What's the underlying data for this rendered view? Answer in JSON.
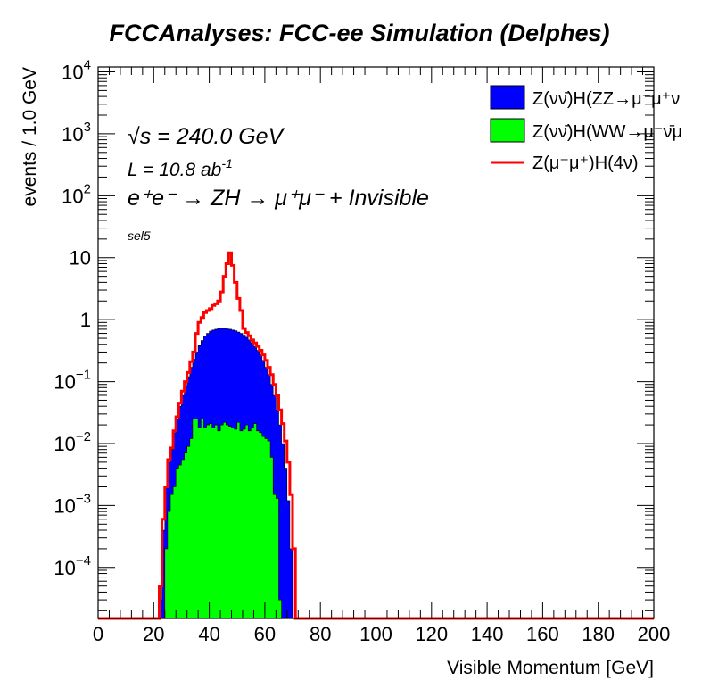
{
  "chart_data": {
    "type": "histogram",
    "title": "FCCAnalyses: FCC-ee Simulation (Delphes)",
    "xlabel": "Visible Momentum [GeV]",
    "ylabel": "events / 1.0 GeV",
    "xlim": [
      0,
      200
    ],
    "ylim": [
      1.5e-05,
      12000
    ],
    "yscale": "log",
    "x_ticks": [
      "0",
      "20",
      "40",
      "60",
      "80",
      "100",
      "120",
      "140",
      "160",
      "180",
      "200"
    ],
    "y_ticks": [
      {
        "base": "10",
        "exp": "4",
        "v": 10000
      },
      {
        "base": "10",
        "exp": "3",
        "v": 1000
      },
      {
        "base": "10",
        "exp": "2",
        "v": 100
      },
      {
        "base": "10",
        "exp": "",
        "v": 10
      },
      {
        "base": "1",
        "exp": "",
        "v": 1
      },
      {
        "base": "10",
        "exp": "−1",
        "v": 0.1
      },
      {
        "base": "10",
        "exp": "−2",
        "v": 0.01
      },
      {
        "base": "10",
        "exp": "−3",
        "v": 0.001
      },
      {
        "base": "10",
        "exp": "−4",
        "v": 0.0001
      }
    ],
    "annotations": {
      "sqrt_s_symbol": "√s",
      "sqrt_s_value": " = 240.0 GeV",
      "lumi_prefix": "L = 10.8 ab",
      "lumi_exp": "-1",
      "process": "e⁺e⁻ → ZH → μ⁺μ⁻ + Invisible",
      "selection": "sel5"
    },
    "legend_position": "top-right",
    "series": [
      {
        "name": "Z(νν̄)H(ZZ→μ⁻μ⁺ν",
        "color": "#0000ff",
        "style": "filled",
        "x_start": 20,
        "bin_width": 1,
        "values": [
          0,
          0,
          3e-05,
          0.0004,
          0.002,
          0.005,
          0.008,
          0.015,
          0.025,
          0.04,
          0.06,
          0.085,
          0.12,
          0.17,
          0.23,
          0.3,
          0.38,
          0.46,
          0.54,
          0.6,
          0.65,
          0.68,
          0.7,
          0.72,
          0.72,
          0.72,
          0.71,
          0.7,
          0.68,
          0.66,
          0.63,
          0.6,
          0.56,
          0.52,
          0.47,
          0.42,
          0.37,
          0.32,
          0.27,
          0.22,
          0.17,
          0.13,
          0.09,
          0.06,
          0.035,
          0.02,
          0.01,
          0.004,
          0.0012,
          0.0002,
          0,
          0,
          0,
          0,
          0,
          0
        ]
      },
      {
        "name": "Z(νν̄)H(WW→μ⁻ν̄μ",
        "color": "#00ff00",
        "style": "filled",
        "x_start": 20,
        "bin_width": 1,
        "values": [
          0,
          0,
          0,
          0,
          0.0002,
          0.0008,
          0.0015,
          0.002,
          0.004,
          0.0045,
          0.0055,
          0.007,
          0.009,
          0.012,
          0.025,
          0.025,
          0.018,
          0.025,
          0.018,
          0.02,
          0.021,
          0.018,
          0.02,
          0.016,
          0.02,
          0.022,
          0.02,
          0.019,
          0.018,
          0.017,
          0.022,
          0.016,
          0.017,
          0.02,
          0.016,
          0.018,
          0.021,
          0.016,
          0.015,
          0.013,
          0.012,
          0.011,
          0.006,
          0.0015,
          0.0013,
          3e-05,
          0,
          0,
          0,
          0,
          0,
          0,
          0,
          0,
          0,
          0
        ]
      },
      {
        "name": "Z(μ⁻μ⁺)H(4ν)",
        "color": "#ff0000",
        "style": "line",
        "x_start": 20,
        "bin_width": 1,
        "values": [
          0,
          0,
          5e-05,
          0.0006,
          0.002,
          0.0055,
          0.0085,
          0.016,
          0.027,
          0.045,
          0.07,
          0.1,
          0.14,
          0.21,
          0.3,
          0.6,
          0.9,
          1.08,
          1.3,
          1.4,
          1.5,
          1.7,
          1.8,
          2.0,
          2.8,
          5.0,
          8.0,
          12.0,
          7.5,
          4.0,
          2.2,
          1.4,
          0.72,
          0.62,
          0.55,
          0.47,
          0.42,
          0.37,
          0.32,
          0.27,
          0.22,
          0.17,
          0.13,
          0.09,
          0.06,
          0.035,
          0.021,
          0.011,
          0.005,
          0.0015,
          0.0002,
          0,
          0,
          0,
          0,
          0
        ]
      }
    ]
  },
  "colors": {
    "background": "#ffffff",
    "axis": "#000000"
  }
}
